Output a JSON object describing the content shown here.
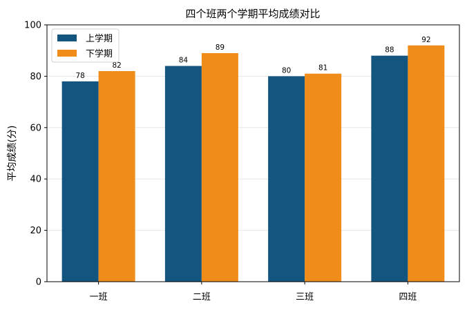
{
  "chart_data": {
    "type": "bar",
    "title": "四个班两个学期平均成绩对比",
    "xlabel": "",
    "ylabel": "平均成绩(分)",
    "categories": [
      "一班",
      "二班",
      "三班",
      "四班"
    ],
    "series": [
      {
        "name": "上学期",
        "values": [
          78,
          84,
          80,
          88
        ],
        "color": "#14557f"
      },
      {
        "name": "下学期",
        "values": [
          82,
          89,
          81,
          92
        ],
        "color": "#ef8c1a"
      }
    ],
    "ylim": [
      0,
      100
    ],
    "yticks": [
      0,
      20,
      40,
      60,
      80,
      100
    ],
    "grid": true,
    "legend_position": "top-left"
  }
}
